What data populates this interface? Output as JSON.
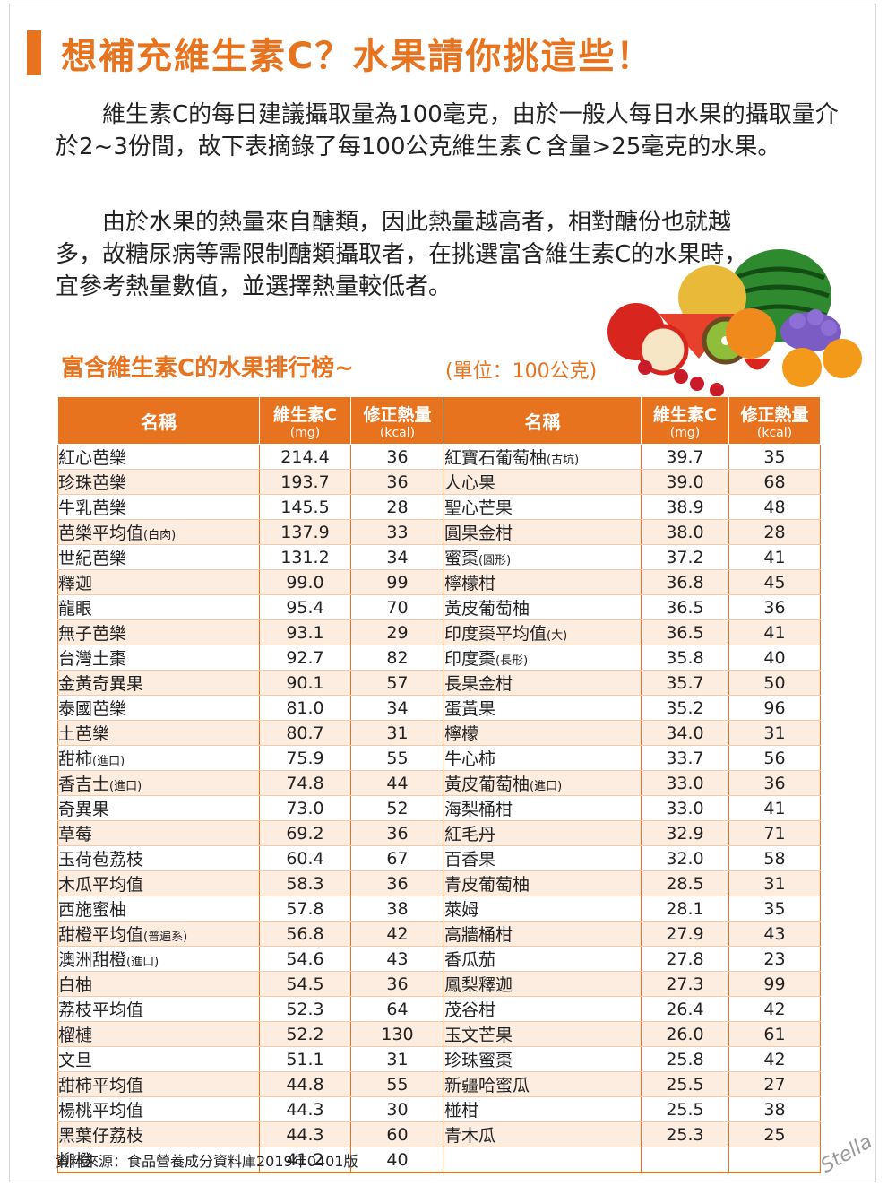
{
  "title": "想補充維生素C？水果請你挑這些！",
  "paragraphs": [
    "維生素C的每日建議攝取量為100毫克，由於一般人每日水果的攝取量介於2~3份間，故下表摘錄了每100公克維生素Ｃ含量>25毫克的水果。",
    "由於水果的熱量來自醣類，因此熱量越高者，相對醣份也就越多，故糖尿病等需限制醣類攝取者，在挑選富含維生素C的水果時，宜參考熱量數值，並選擇熱量較低者。"
  ],
  "subtitle": "富含維生素C的水果排行榜~",
  "unit": "(單位：100公克)",
  "table": {
    "headers": {
      "name": "名稱",
      "vitc": "維生素C",
      "vitc_unit": "(mg)",
      "kcal": "修正熱量",
      "kcal_unit": "(kcal)"
    },
    "left": [
      {
        "name": "紅心芭樂",
        "note": "",
        "vitc": "214.4",
        "kcal": "36"
      },
      {
        "name": "珍珠芭樂",
        "note": "",
        "vitc": "193.7",
        "kcal": "36"
      },
      {
        "name": "牛乳芭樂",
        "note": "",
        "vitc": "145.5",
        "kcal": "28"
      },
      {
        "name": "芭樂平均值",
        "note": "(白肉)",
        "vitc": "137.9",
        "kcal": "33"
      },
      {
        "name": "世紀芭樂",
        "note": "",
        "vitc": "131.2",
        "kcal": "34"
      },
      {
        "name": "釋迦",
        "note": "",
        "vitc": "99.0",
        "kcal": "99"
      },
      {
        "name": "龍眼",
        "note": "",
        "vitc": "95.4",
        "kcal": "70"
      },
      {
        "name": "無子芭樂",
        "note": "",
        "vitc": "93.1",
        "kcal": "29"
      },
      {
        "name": "台灣土棗",
        "note": "",
        "vitc": "92.7",
        "kcal": "82"
      },
      {
        "name": "金黃奇異果",
        "note": "",
        "vitc": "90.1",
        "kcal": "57"
      },
      {
        "name": "泰國芭樂",
        "note": "",
        "vitc": "81.0",
        "kcal": "34"
      },
      {
        "name": "土芭樂",
        "note": "",
        "vitc": "80.7",
        "kcal": "31"
      },
      {
        "name": "甜柿",
        "note": "(進口)",
        "vitc": "75.9",
        "kcal": "55"
      },
      {
        "name": "香吉士",
        "note": "(進口)",
        "vitc": "74.8",
        "kcal": "44"
      },
      {
        "name": "奇異果",
        "note": "",
        "vitc": "73.0",
        "kcal": "52"
      },
      {
        "name": "草莓",
        "note": "",
        "vitc": "69.2",
        "kcal": "36"
      },
      {
        "name": "玉荷苞荔枝",
        "note": "",
        "vitc": "60.4",
        "kcal": "67"
      },
      {
        "name": "木瓜平均值",
        "note": "",
        "vitc": "58.3",
        "kcal": "36"
      },
      {
        "name": "西施蜜柚",
        "note": "",
        "vitc": "57.8",
        "kcal": "38"
      },
      {
        "name": "甜橙平均值",
        "note": "(普遍系)",
        "vitc": "56.8",
        "kcal": "42"
      },
      {
        "name": "澳洲甜橙",
        "note": "(進口)",
        "vitc": "54.6",
        "kcal": "43"
      },
      {
        "name": "白柚",
        "note": "",
        "vitc": "54.5",
        "kcal": "36"
      },
      {
        "name": "荔枝平均值",
        "note": "",
        "vitc": "52.3",
        "kcal": "64"
      },
      {
        "name": "榴槤",
        "note": "",
        "vitc": "52.2",
        "kcal": "130"
      },
      {
        "name": "文旦",
        "note": "",
        "vitc": "51.1",
        "kcal": "31"
      },
      {
        "name": "甜柿平均值",
        "note": "",
        "vitc": "44.8",
        "kcal": "55"
      },
      {
        "name": "楊桃平均值",
        "note": "",
        "vitc": "44.3",
        "kcal": "30"
      },
      {
        "name": "黑葉仔荔枝",
        "note": "",
        "vitc": "44.3",
        "kcal": "60"
      },
      {
        "name": "柳橙",
        "note": "",
        "vitc": "41.2",
        "kcal": "40"
      }
    ],
    "right": [
      {
        "name": "紅寶石葡萄柚",
        "note": "(古坑)",
        "vitc": "39.7",
        "kcal": "35"
      },
      {
        "name": "人心果",
        "note": "",
        "vitc": "39.0",
        "kcal": "68"
      },
      {
        "name": "聖心芒果",
        "note": "",
        "vitc": "38.9",
        "kcal": "48"
      },
      {
        "name": "圓果金柑",
        "note": "",
        "vitc": "38.0",
        "kcal": "28"
      },
      {
        "name": "蜜棗",
        "note": "(圓形)",
        "vitc": "37.2",
        "kcal": "41"
      },
      {
        "name": "檸檬柑",
        "note": "",
        "vitc": "36.8",
        "kcal": "45"
      },
      {
        "name": "黃皮葡萄柚",
        "note": "",
        "vitc": "36.5",
        "kcal": "36"
      },
      {
        "name": "印度棗平均值",
        "note": "(大)",
        "vitc": "36.5",
        "kcal": "41"
      },
      {
        "name": "印度棗",
        "note": "(長形)",
        "vitc": "35.8",
        "kcal": "40"
      },
      {
        "name": "長果金柑",
        "note": "",
        "vitc": "35.7",
        "kcal": "50"
      },
      {
        "name": "蛋黃果",
        "note": "",
        "vitc": "35.2",
        "kcal": "96"
      },
      {
        "name": "檸檬",
        "note": "",
        "vitc": "34.0",
        "kcal": "31"
      },
      {
        "name": "牛心柿",
        "note": "",
        "vitc": "33.7",
        "kcal": "56"
      },
      {
        "name": "黃皮葡萄柚",
        "note": "(進口)",
        "vitc": "33.0",
        "kcal": "36"
      },
      {
        "name": "海梨桶柑",
        "note": "",
        "vitc": "33.0",
        "kcal": "41"
      },
      {
        "name": "紅毛丹",
        "note": "",
        "vitc": "32.9",
        "kcal": "71"
      },
      {
        "name": "百香果",
        "note": "",
        "vitc": "32.0",
        "kcal": "58"
      },
      {
        "name": "青皮葡萄柚",
        "note": "",
        "vitc": "28.5",
        "kcal": "31"
      },
      {
        "name": "萊姆",
        "note": "",
        "vitc": "28.1",
        "kcal": "35"
      },
      {
        "name": "高牆桶柑",
        "note": "",
        "vitc": "27.9",
        "kcal": "43"
      },
      {
        "name": "香瓜茄",
        "note": "",
        "vitc": "27.8",
        "kcal": "23"
      },
      {
        "name": "鳳梨釋迦",
        "note": "",
        "vitc": "27.3",
        "kcal": "99"
      },
      {
        "name": "茂谷柑",
        "note": "",
        "vitc": "26.4",
        "kcal": "42"
      },
      {
        "name": "玉文芒果",
        "note": "",
        "vitc": "26.0",
        "kcal": "61"
      },
      {
        "name": "珍珠蜜棗",
        "note": "",
        "vitc": "25.8",
        "kcal": "42"
      },
      {
        "name": "新疆哈蜜瓜",
        "note": "",
        "vitc": "25.5",
        "kcal": "27"
      },
      {
        "name": "椪柑",
        "note": "",
        "vitc": "25.5",
        "kcal": "38"
      },
      {
        "name": "青木瓜",
        "note": "",
        "vitc": "25.3",
        "kcal": "25"
      },
      {
        "name": "",
        "note": "",
        "vitc": "",
        "kcal": ""
      }
    ]
  },
  "source": "資料來源：食品營養成分資料庫2019年0401版",
  "signature": "Stella",
  "colors": {
    "accent": "#e8731f",
    "row_alt": "#fdece0"
  },
  "illustration": "fruit-basket-illustration"
}
